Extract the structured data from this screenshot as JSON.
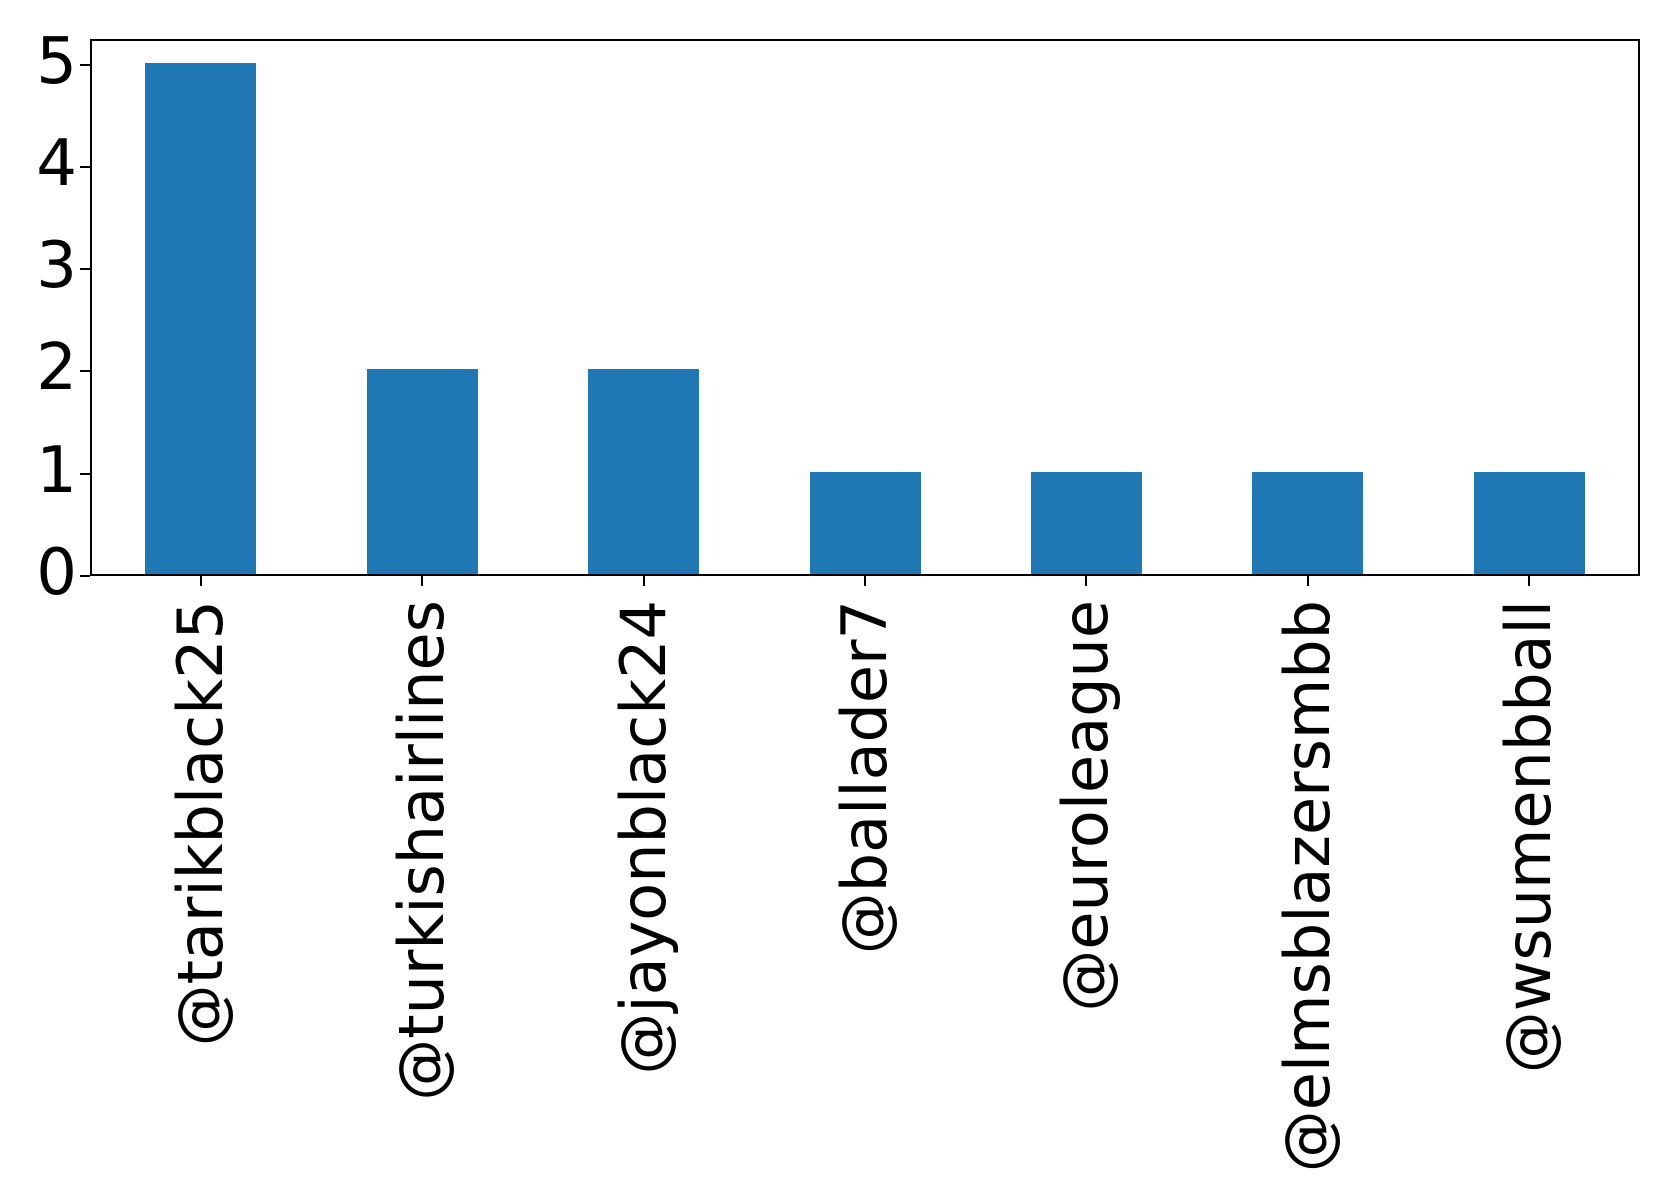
{
  "chart_data": {
    "type": "bar",
    "categories": [
      "@tarikblack25",
      "@turkishairlines",
      "@jayonblack24",
      "@ballader7",
      "@euroleague",
      "@elmsblazersmbb",
      "@wsumenbball"
    ],
    "values": [
      5,
      2,
      2,
      1,
      1,
      1,
      1
    ],
    "title": "",
    "xlabel": "",
    "ylabel": "",
    "ylim": [
      0,
      5.25
    ],
    "yticks": [
      0,
      1,
      2,
      3,
      4,
      5
    ],
    "xtick_rotation": 90,
    "bar_color": "#1f77b4",
    "axis_color": "#000000",
    "background_color": "#ffffff",
    "grid": false,
    "legend": null
  }
}
